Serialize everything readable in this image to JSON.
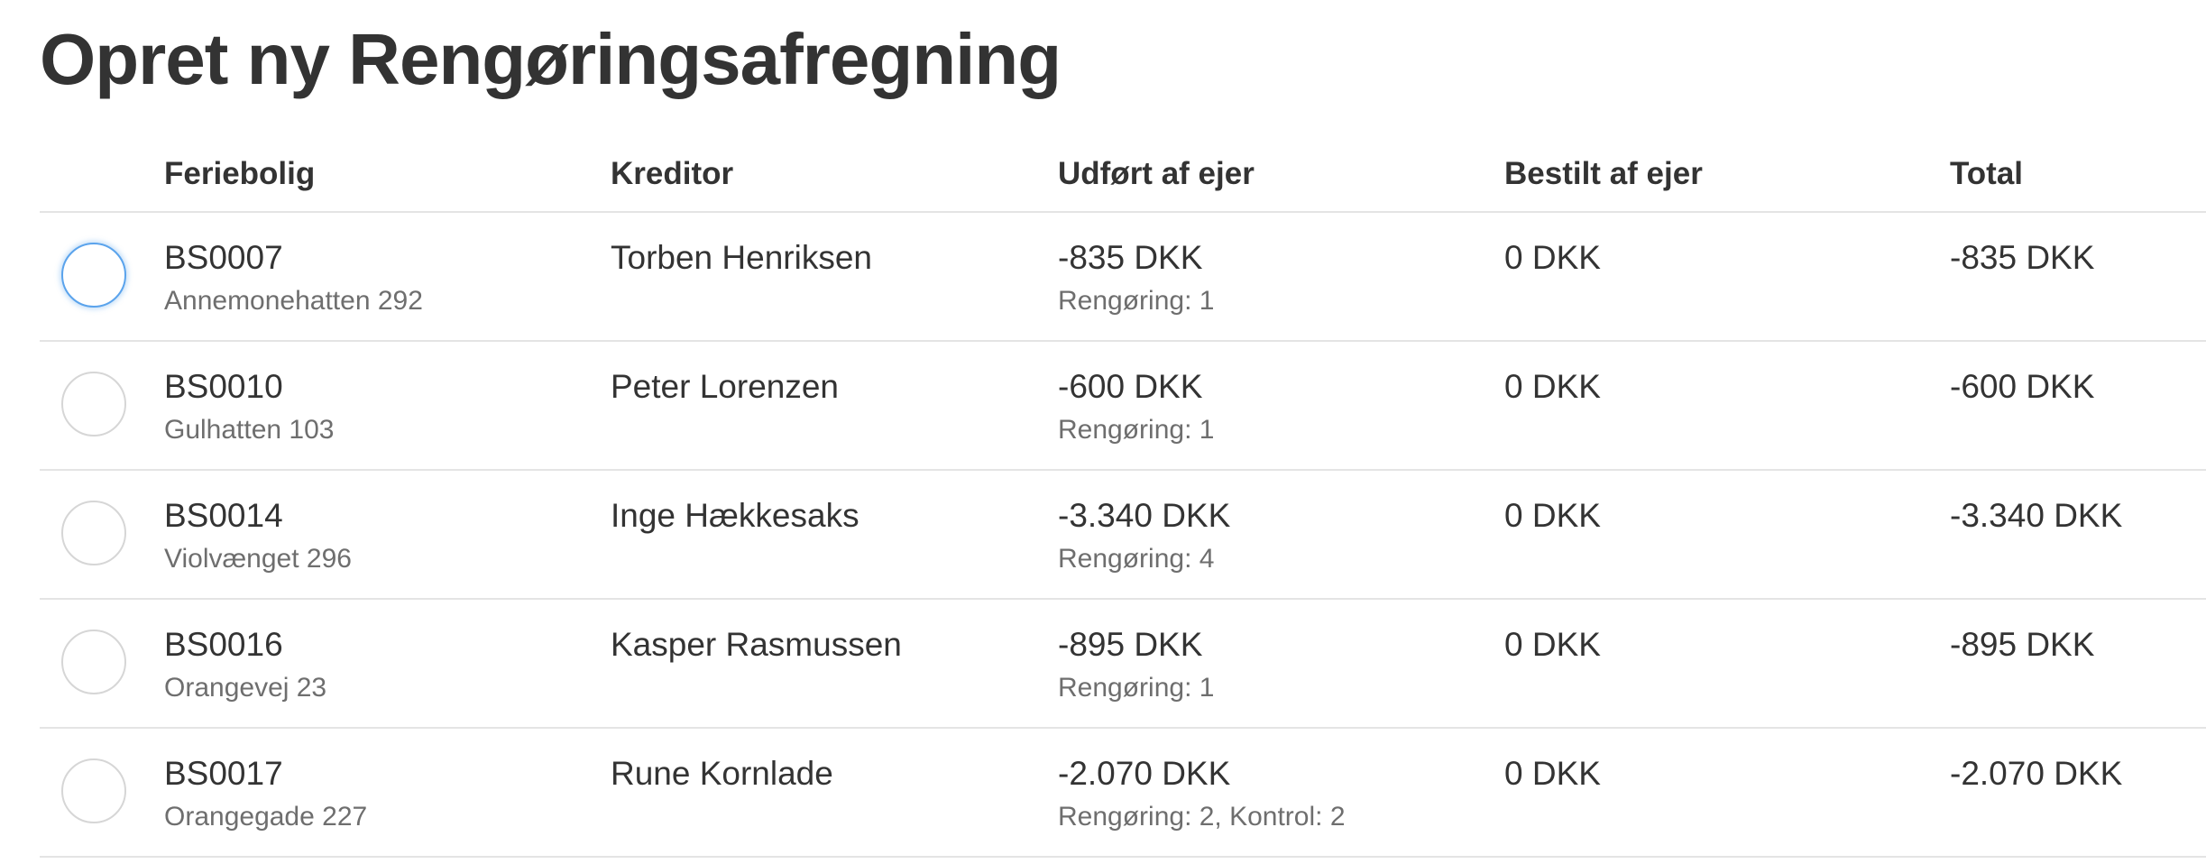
{
  "page": {
    "title": "Opret ny Rengøringsafregning"
  },
  "table": {
    "columns": [
      {
        "key": "feriebolig",
        "label": "Feriebolig"
      },
      {
        "key": "kreditor",
        "label": "Kreditor"
      },
      {
        "key": "udfoert_af_ejer",
        "label": "Udført af ejer"
      },
      {
        "key": "bestilt_af_ejer",
        "label": "Bestilt af ejer"
      },
      {
        "key": "total",
        "label": "Total"
      }
    ],
    "rows": [
      {
        "selected": false,
        "focused": true,
        "feriebolig_code": "BS0007",
        "feriebolig_address": "Annemonehatten 292",
        "kreditor": "Torben Henriksen",
        "udfoert_amount": "-835 DKK",
        "udfoert_detail": "Rengøring: 1",
        "bestilt_amount": "0 DKK",
        "total": "-835 DKK"
      },
      {
        "selected": false,
        "focused": false,
        "feriebolig_code": "BS0010",
        "feriebolig_address": "Gulhatten 103",
        "kreditor": "Peter Lorenzen",
        "udfoert_amount": "-600 DKK",
        "udfoert_detail": "Rengøring: 1",
        "bestilt_amount": "0 DKK",
        "total": "-600 DKK"
      },
      {
        "selected": false,
        "focused": false,
        "feriebolig_code": "BS0014",
        "feriebolig_address": "Violvænget 296",
        "kreditor": "Inge Hækkesaks",
        "udfoert_amount": "-3.340 DKK",
        "udfoert_detail": "Rengøring: 4",
        "bestilt_amount": "0 DKK",
        "total": "-3.340 DKK"
      },
      {
        "selected": false,
        "focused": false,
        "feriebolig_code": "BS0016",
        "feriebolig_address": "Orangevej 23",
        "kreditor": "Kasper Rasmussen",
        "udfoert_amount": "-895 DKK",
        "udfoert_detail": "Rengøring: 1",
        "bestilt_amount": "0 DKK",
        "total": "-895 DKK"
      },
      {
        "selected": false,
        "focused": false,
        "feriebolig_code": "BS0017",
        "feriebolig_address": "Orangegade 227",
        "kreditor": "Rune Kornlade",
        "udfoert_amount": "-2.070 DKK",
        "udfoert_detail": "Rengøring: 2, Kontrol: 2",
        "bestilt_amount": "0 DKK",
        "total": "-2.070 DKK"
      }
    ]
  },
  "colors": {
    "text": "#333333",
    "muted_text": "#6e6e6e",
    "divider": "#e4e4e4",
    "radio_border": "#d6d6d6",
    "focus_ring": "#5aa3ec"
  }
}
